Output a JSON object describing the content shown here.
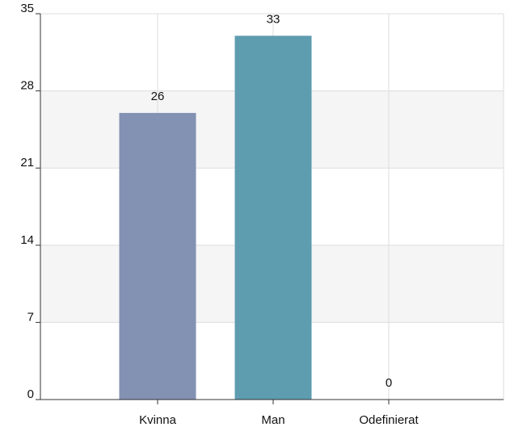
{
  "chart_data": {
    "type": "bar",
    "categories": [
      "Kvinna",
      "Man",
      "Odefinierat"
    ],
    "values": [
      26,
      33,
      0
    ],
    "data_labels": [
      "26",
      "33",
      "0"
    ],
    "ylim": [
      0,
      35
    ],
    "yticks": [
      0,
      7,
      14,
      21,
      28,
      35
    ],
    "ytick_labels": [
      "0",
      "7",
      "14",
      "21",
      "28",
      "35"
    ],
    "title": "",
    "xlabel": "",
    "ylabel": "",
    "grid": true,
    "legend": "none",
    "bar_colors": [
      "#8391B3",
      "#5E9CB0",
      "#8391B3"
    ],
    "band_color": "#F5F5F5",
    "grid_color": "#DDDDDD",
    "axis_color": "#333333"
  }
}
